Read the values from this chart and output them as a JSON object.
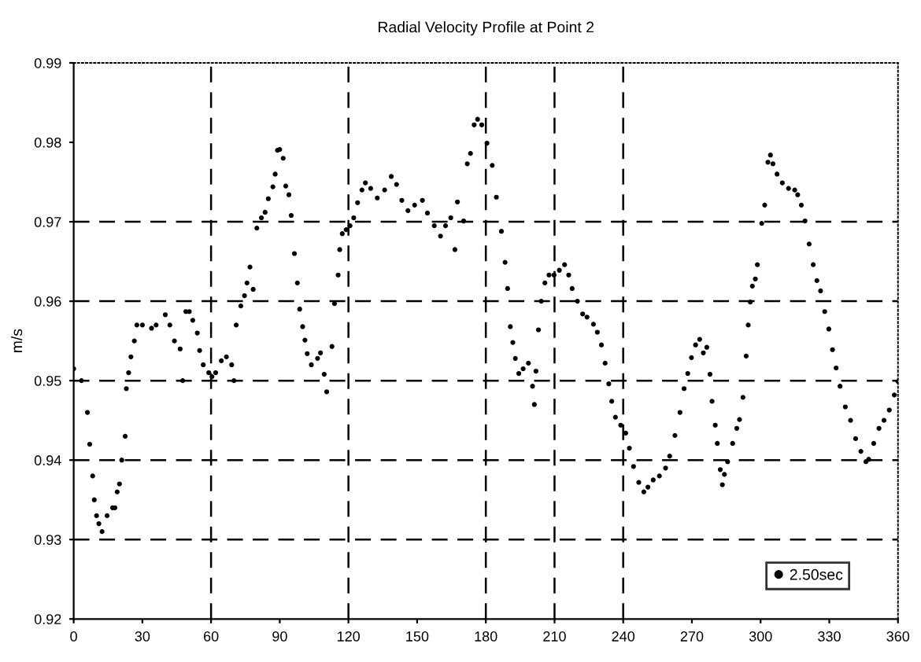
{
  "chart_data": {
    "type": "scatter",
    "title": "Radial Velocity Profile at Point 2",
    "ylabel": "m/s",
    "xlim": [
      0,
      360
    ],
    "xticks": [
      0,
      30,
      60,
      90,
      120,
      150,
      180,
      210,
      240,
      270,
      300,
      330,
      360
    ],
    "ylim": [
      0.92,
      0.99
    ],
    "yticks": [
      0.92,
      0.93,
      0.94,
      0.95,
      0.96,
      0.97,
      0.98,
      0.99
    ],
    "grid": false,
    "legend": "bottom right",
    "marker": "circle",
    "ref_lines": [
      {
        "axis": "x",
        "value": 60,
        "line_style": "dashed",
        "color": "#000000"
      },
      {
        "axis": "x",
        "value": 120,
        "line_style": "dashed",
        "color": "#000000"
      },
      {
        "axis": "x",
        "value": 180,
        "line_style": "dashed",
        "color": "#000000"
      },
      {
        "axis": "x",
        "value": 210,
        "line_style": "dashed",
        "color": "#000000"
      },
      {
        "axis": "x",
        "value": 240,
        "line_style": "dashed",
        "color": "#000000"
      },
      {
        "axis": "y",
        "value": 0.93,
        "line_style": "dashed",
        "color": "#000000"
      },
      {
        "axis": "y",
        "value": 0.94,
        "line_style": "dashed",
        "color": "#000000"
      },
      {
        "axis": "y",
        "value": 0.95,
        "line_style": "dashed",
        "color": "#000000"
      },
      {
        "axis": "y",
        "value": 0.96,
        "line_style": "dashed",
        "color": "#000000"
      },
      {
        "axis": "y",
        "value": 0.97,
        "line_style": "dashed",
        "color": "#000000"
      }
    ],
    "series": [
      {
        "name": "2.50sec",
        "color": "#000000",
        "x": [
          0,
          3.4,
          6,
          7,
          8.3,
          9,
          10,
          11,
          12.4,
          14.6,
          17,
          18,
          19,
          20,
          21,
          22.5,
          23,
          24,
          25,
          26.5,
          27.6,
          30,
          34,
          36,
          40,
          42,
          44,
          46.5,
          47.6,
          49,
          50.5,
          52,
          54,
          55,
          56.6,
          59,
          60.4,
          62,
          64.5,
          66.7,
          69,
          70,
          71,
          73,
          74.6,
          75.7,
          77,
          78.4,
          80,
          82,
          83.6,
          85,
          87,
          88,
          89,
          90,
          91.5,
          92.6,
          94,
          95,
          96.4,
          97.7,
          98.7,
          100,
          101,
          102,
          103.8,
          106.5,
          107.8,
          109.4,
          110.5,
          112.8,
          113.9,
          115.5,
          116.2,
          117.3,
          119,
          120.7,
          122.3,
          124,
          125.9,
          127.4,
          129.7,
          132.6,
          135.8,
          138.7,
          141,
          143.3,
          146,
          148.9,
          152.3,
          154.5,
          157.5,
          160.2,
          162.4,
          164.7,
          166.5,
          167.6,
          170.3,
          171.9,
          173.3,
          174.9,
          176.4,
          178.2,
          180.5,
          182.8,
          184.6,
          186.8,
          188.4,
          189.5,
          190.7,
          191.8,
          192.9,
          194.4,
          196.3,
          198.6,
          200.4,
          201.2,
          201.9,
          203,
          204.2,
          205.8,
          207.6,
          209.8,
          212.1,
          214.4,
          216.2,
          217.7,
          220,
          222.3,
          224.2,
          227,
          228.7,
          230.5,
          232.1,
          233.7,
          235,
          236.6,
          238.9,
          241.1,
          242.7,
          244.5,
          246.8,
          249,
          250.8,
          253.1,
          255.8,
          258.5,
          260.3,
          262.6,
          264.8,
          266.6,
          268.2,
          269.8,
          271.6,
          273.4,
          275,
          276.5,
          277.9,
          278.8,
          280.2,
          281.1,
          282.4,
          283.3,
          284.2,
          285.6,
          287.8,
          289.6,
          290.8,
          292.3,
          293.7,
          294.6,
          295.5,
          296.4,
          297.7,
          298.6,
          300.5,
          301.8,
          303.2,
          304.3,
          305.4,
          307.2,
          309.5,
          312.2,
          314.9,
          316.2,
          317.8,
          319.4,
          321.2,
          323,
          324.6,
          326.2,
          328,
          329.8,
          331.4,
          333,
          334.7,
          337,
          339.3,
          341.5,
          343.8,
          346,
          347.2,
          349.4,
          351.7,
          353.9,
          356.2,
          358.4,
          360
        ],
        "values": [
          0.9515,
          0.95,
          0.946,
          0.942,
          0.938,
          0.935,
          0.933,
          0.932,
          0.931,
          0.933,
          0.934,
          0.934,
          0.936,
          0.937,
          0.94,
          0.943,
          0.949,
          0.951,
          0.953,
          0.955,
          0.957,
          0.957,
          0.9566,
          0.957,
          0.9583,
          0.957,
          0.955,
          0.954,
          0.95,
          0.9587,
          0.9587,
          0.9576,
          0.956,
          0.9538,
          0.952,
          0.951,
          0.9505,
          0.951,
          0.9525,
          0.953,
          0.952,
          0.95,
          0.957,
          0.9594,
          0.9607,
          0.9623,
          0.9643,
          0.9615,
          0.9692,
          0.9705,
          0.9712,
          0.9729,
          0.9744,
          0.976,
          0.979,
          0.9791,
          0.978,
          0.9745,
          0.9734,
          0.9708,
          0.966,
          0.9623,
          0.959,
          0.9568,
          0.9551,
          0.9534,
          0.952,
          0.9528,
          0.9535,
          0.9508,
          0.9486,
          0.9543,
          0.9597,
          0.9633,
          0.9665,
          0.9685,
          0.969,
          0.9695,
          0.9705,
          0.9724,
          0.974,
          0.9749,
          0.9742,
          0.973,
          0.974,
          0.9757,
          0.9747,
          0.9727,
          0.9714,
          0.9721,
          0.9727,
          0.9711,
          0.9695,
          0.9682,
          0.9695,
          0.9705,
          0.9665,
          0.9725,
          0.9701,
          0.9773,
          0.9786,
          0.9822,
          0.9829,
          0.9822,
          0.9799,
          0.9771,
          0.9731,
          0.9688,
          0.9649,
          0.9616,
          0.9568,
          0.9548,
          0.9528,
          0.9509,
          0.9515,
          0.9522,
          0.9493,
          0.947,
          0.9512,
          0.9564,
          0.96,
          0.9623,
          0.9633,
          0.9633,
          0.9639,
          0.9646,
          0.9633,
          0.9616,
          0.96,
          0.9584,
          0.958,
          0.9571,
          0.9561,
          0.9545,
          0.9522,
          0.9496,
          0.9474,
          0.9454,
          0.9444,
          0.9434,
          0.9415,
          0.9392,
          0.9372,
          0.936,
          0.9366,
          0.9375,
          0.938,
          0.939,
          0.9405,
          0.9431,
          0.946,
          0.949,
          0.9509,
          0.9529,
          0.9545,
          0.9552,
          0.9535,
          0.9542,
          0.9508,
          0.9474,
          0.9444,
          0.9421,
          0.9388,
          0.9369,
          0.9382,
          0.9398,
          0.9421,
          0.944,
          0.9451,
          0.9479,
          0.9531,
          0.957,
          0.9599,
          0.9619,
          0.9628,
          0.9646,
          0.9698,
          0.9721,
          0.9775,
          0.9784,
          0.9773,
          0.976,
          0.9749,
          0.9742,
          0.974,
          0.9734,
          0.9721,
          0.9701,
          0.9672,
          0.9646,
          0.9626,
          0.9613,
          0.9587,
          0.9565,
          0.9539,
          0.9516,
          0.9493,
          0.9467,
          0.945,
          0.9427,
          0.9411,
          0.9398,
          0.9401,
          0.9421,
          0.944,
          0.945,
          0.9463,
          0.9482,
          0.9499
        ]
      }
    ]
  }
}
